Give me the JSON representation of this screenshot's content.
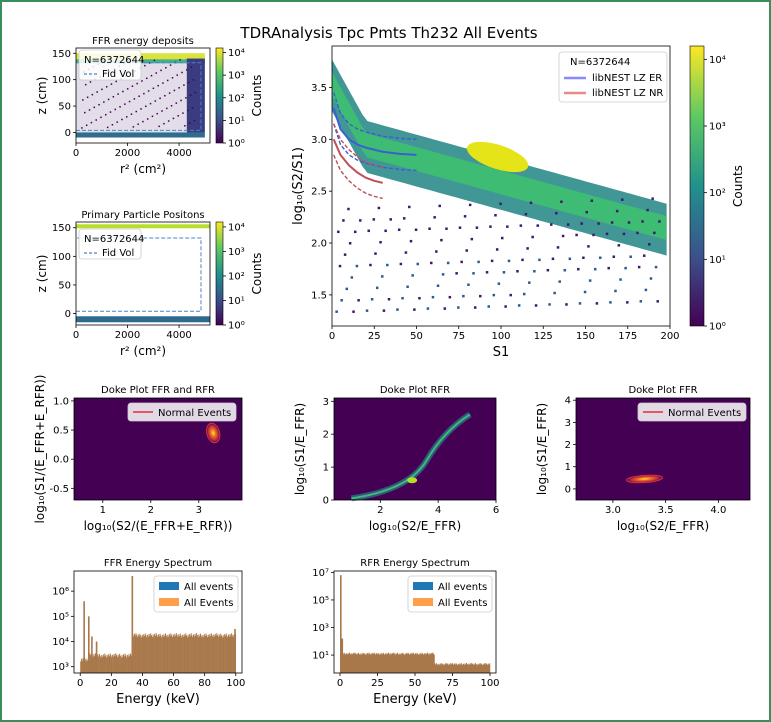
{
  "figure": {
    "title": "TDRAnalysis Tpc Pmts Th232 All Events"
  },
  "colors": {
    "frame": "#3c8d5c",
    "spectrum_fill": "#a8784a",
    "er_band": "#8888ff",
    "nr_band": "#ee8888",
    "fid_vol": "#4a86c8",
    "normal_events": "#e0303c",
    "all_events_blue": "#1f77b4",
    "all_events_orange": "#ff9f4a"
  },
  "chart_data": [
    {
      "id": "ffr_deposits",
      "type": "heatmap",
      "title": "FFR energy deposits",
      "xlabel": "r² (cm²)",
      "ylabel": "z (cm)",
      "xlim": [
        0,
        5200
      ],
      "ylim": [
        -20,
        160
      ],
      "xticks": [
        "0",
        "2000",
        "4000"
      ],
      "yticks": [
        "0",
        "50",
        "100",
        "150"
      ],
      "legend": [
        "N=6372644",
        "Fid Vol"
      ],
      "colorbar": {
        "label": "Counts",
        "ticks": [
          "10⁰",
          "10¹",
          "10²",
          "10³",
          "10⁴"
        ],
        "scale": "log"
      }
    },
    {
      "id": "primary_positions",
      "type": "heatmap",
      "title": "Primary Particle Positons",
      "xlabel": "r² (cm²)",
      "ylabel": "z (cm)",
      "xlim": [
        0,
        5200
      ],
      "ylim": [
        -20,
        160
      ],
      "xticks": [
        "0",
        "2000",
        "4000"
      ],
      "yticks": [
        "0",
        "50",
        "100",
        "150"
      ],
      "legend": [
        "N=6372644",
        "Fid Vol"
      ],
      "colorbar": {
        "label": "Counts",
        "ticks": [
          "10⁰",
          "10¹",
          "10²",
          "10³",
          "10⁴"
        ],
        "scale": "log"
      }
    },
    {
      "id": "s1_s2",
      "type": "heatmap",
      "title": "",
      "xlabel": "S1",
      "ylabel": "log₁₀(S2/S1)",
      "xlim": [
        0,
        200
      ],
      "ylim": [
        1.2,
        3.9
      ],
      "xticks": [
        "0",
        "25",
        "50",
        "75",
        "100",
        "125",
        "150",
        "175",
        "200"
      ],
      "yticks": [
        "1.5",
        "2.0",
        "2.5",
        "3.0",
        "3.5"
      ],
      "legend": [
        "N=6372644",
        "libNEST LZ ER",
        "libNEST LZ NR"
      ],
      "bands": [
        {
          "name": "libNEST LZ ER",
          "x": [
            1,
            5,
            10,
            15,
            20,
            30,
            40,
            50
          ],
          "y": [
            3.3,
            3.1,
            3.0,
            2.95,
            2.92,
            2.88,
            2.86,
            2.85
          ]
        },
        {
          "name": "libNEST LZ NR",
          "x": [
            1,
            5,
            10,
            15,
            20,
            25,
            30
          ],
          "y": [
            3.0,
            2.85,
            2.75,
            2.68,
            2.63,
            2.6,
            2.58
          ]
        }
      ],
      "colorbar": {
        "label": "Counts",
        "ticks": [
          "10⁰",
          "10¹",
          "10²",
          "10³",
          "10⁴"
        ],
        "scale": "log"
      }
    },
    {
      "id": "doke_both",
      "type": "heatmap",
      "title": "Doke Plot FFR and RFR",
      "xlabel": "log₁₀(S2/(E_FFR+E_RFR))",
      "ylabel": "log₁₀(S1/(E_FFR+E_RFR))",
      "xlim": [
        0.4,
        3.9
      ],
      "ylim": [
        -0.7,
        1.05
      ],
      "xticks": [
        "1",
        "2",
        "3"
      ],
      "yticks": [
        "-0.5",
        "0.0",
        "0.5",
        "1.0"
      ],
      "legend": [
        "Normal Events"
      ]
    },
    {
      "id": "doke_rfr",
      "type": "heatmap",
      "title": "Doke Plot RFR",
      "xlabel": "log₁₀(S2/E_FFR)",
      "ylabel": "log₁₀(S1/E_FFR)",
      "xlim": [
        0.4,
        6.0
      ],
      "ylim": [
        0,
        3.1
      ],
      "xticks": [
        "2",
        "4",
        "6"
      ],
      "yticks": [
        "0",
        "1",
        "2",
        "3"
      ],
      "legend": []
    },
    {
      "id": "doke_ffr",
      "type": "heatmap",
      "title": "Doke Plot FFR",
      "xlabel": "log₁₀(S2/E_FFR)",
      "ylabel": "log₁₀(S1/E_FFR)",
      "xlim": [
        2.65,
        4.3
      ],
      "ylim": [
        -0.5,
        4.1
      ],
      "xticks": [
        "3.0",
        "3.5",
        "4.0"
      ],
      "yticks": [
        "0",
        "1",
        "2",
        "3",
        "4"
      ],
      "legend": [
        "Normal Events"
      ]
    },
    {
      "id": "ffr_spectrum",
      "type": "bar",
      "title": "FFR Energy Spectrum",
      "xlabel": "Energy (keV)",
      "ylabel": "",
      "xlim": [
        -4,
        104
      ],
      "ylim_log10": [
        2.75,
        6.8
      ],
      "xticks": [
        "0",
        "20",
        "40",
        "60",
        "80",
        "100"
      ],
      "yticks": [
        "10³",
        "10⁴",
        "10⁵",
        "10⁶"
      ],
      "legend": [
        "All events",
        "All Events"
      ],
      "baseline_log10": [
        {
          "from": 0,
          "to": 6,
          "v": 3.3
        },
        {
          "from": 6,
          "to": 33,
          "v": 3.45
        },
        {
          "from": 33,
          "to": 100,
          "v": 4.25
        }
      ],
      "peaks": [
        {
          "x": 2,
          "log10": 5.6
        },
        {
          "x": 5,
          "log10": 5.0
        },
        {
          "x": 7,
          "log10": 4.2
        },
        {
          "x": 10,
          "log10": 4.0
        },
        {
          "x": 33,
          "log10": 6.6
        },
        {
          "x": 99,
          "log10": 4.5
        }
      ]
    },
    {
      "id": "rfr_spectrum",
      "type": "bar",
      "title": "RFR Energy Spectrum",
      "xlabel": "Energy (keV)",
      "ylabel": "",
      "xlim": [
        -4,
        104
      ],
      "ylim_log10": [
        -0.3,
        7.1
      ],
      "xticks": [
        "0",
        "25",
        "50",
        "75",
        "100"
      ],
      "yticks": [
        "10¹",
        "10³",
        "10⁵",
        "10⁷"
      ],
      "legend": [
        "All events",
        "All Events"
      ],
      "baseline_log10": [
        {
          "from": 0,
          "to": 63,
          "v": 1.1
        },
        {
          "from": 63,
          "to": 100,
          "v": 0.35
        }
      ],
      "peaks": [
        {
          "x": 0,
          "log10": 6.8
        },
        {
          "x": 1,
          "log10": 2.2
        }
      ]
    }
  ]
}
